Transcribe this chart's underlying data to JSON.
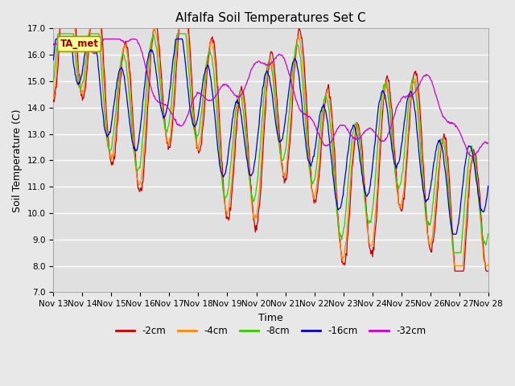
{
  "title": "Alfalfa Soil Temperatures Set C",
  "xlabel": "Time",
  "ylabel": "Soil Temperature (C)",
  "ylim": [
    7.0,
    17.0
  ],
  "yticks": [
    7.0,
    8.0,
    9.0,
    10.0,
    11.0,
    12.0,
    13.0,
    14.0,
    15.0,
    16.0,
    17.0
  ],
  "xtick_days": [
    13,
    14,
    15,
    16,
    17,
    18,
    19,
    20,
    21,
    22,
    23,
    24,
    25,
    26,
    27,
    28
  ],
  "series_colors": {
    "-2cm": "#cc0000",
    "-4cm": "#ff8800",
    "-8cm": "#33cc00",
    "-16cm": "#0000cc",
    "-32cm": "#cc00cc"
  },
  "legend_labels": [
    "-2cm",
    "-4cm",
    "-8cm",
    "-16cm",
    "-32cm"
  ],
  "ta_met_label": "TA_met",
  "ta_met_box_color": "#ffff99",
  "ta_met_border_color": "#999900",
  "ta_met_text_color": "#990000",
  "fig_facecolor": "#e8e8e8",
  "plot_bg_color": "#e0e0e0",
  "grid_color": "#ffffff",
  "title_fontsize": 11,
  "axis_label_fontsize": 9,
  "tick_fontsize": 7.5,
  "legend_fontsize": 8.5
}
